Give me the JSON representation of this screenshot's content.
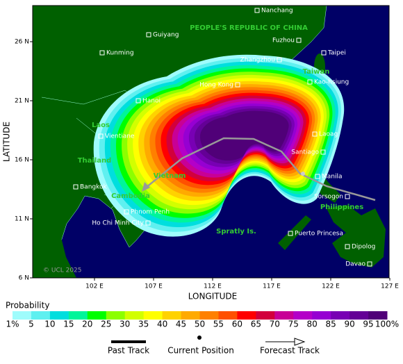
{
  "map": {
    "xlabel": "LONGITUDE",
    "ylabel": "LATITUDE",
    "xticks": [
      {
        "value": 102,
        "label": "102 E"
      },
      {
        "value": 107,
        "label": "107 E"
      },
      {
        "value": 112,
        "label": "112 E"
      },
      {
        "value": 117,
        "label": "117 E"
      },
      {
        "value": 122,
        "label": "122 E"
      },
      {
        "value": 127,
        "label": "127 E"
      }
    ],
    "yticks": [
      {
        "value": 26,
        "label": "26 N"
      },
      {
        "value": 21,
        "label": "21 N"
      },
      {
        "value": 16,
        "label": "16 N"
      },
      {
        "value": 11,
        "label": "11 N"
      },
      {
        "value": 6,
        "label": "6 N"
      }
    ],
    "cities": [
      "Nanchang",
      "Guiyang",
      "Fuzhou",
      "Kunming",
      "Taipei",
      "Zhangzhou",
      "Hong Kong",
      "Kao-hsiung",
      "Hanoi",
      "Vientiane",
      "Laoag",
      "Santiago",
      "Manila",
      "Bangkok",
      "Sorsogon",
      "Phnom Penh",
      "Ho Chi Minh City",
      "Puerto Princesa",
      "Dipolog",
      "Davao"
    ],
    "regions": [
      "PEOPLE'S REPUBLIC OF CHINA",
      "Taiwan",
      "Laos",
      "Thailand",
      "Vietnam",
      "Cambodia",
      "Philippines",
      "Spratly Is."
    ],
    "copyright": "© UCL 2025"
  },
  "legend": {
    "title": "Probability",
    "labels": [
      "1%",
      "5",
      "10",
      "15",
      "20",
      "25",
      "30",
      "35",
      "40",
      "45",
      "50",
      "55",
      "60",
      "65",
      "70",
      "75",
      "80",
      "85",
      "90",
      "95",
      "100%"
    ],
    "colors": [
      "#9ffcfc",
      "#5ff0f0",
      "#00dede",
      "#00f59a",
      "#00ff00",
      "#8cff00",
      "#d2ff00",
      "#ffff00",
      "#ffd200",
      "#ffaa00",
      "#ff8000",
      "#ff5000",
      "#ff0000",
      "#d2003c",
      "#c80096",
      "#b400c8",
      "#9600d2",
      "#7800b4",
      "#640096",
      "#500078"
    ]
  },
  "key": {
    "past": "Past Track",
    "current": "Current Position",
    "forecast": "Forecast Track"
  }
}
